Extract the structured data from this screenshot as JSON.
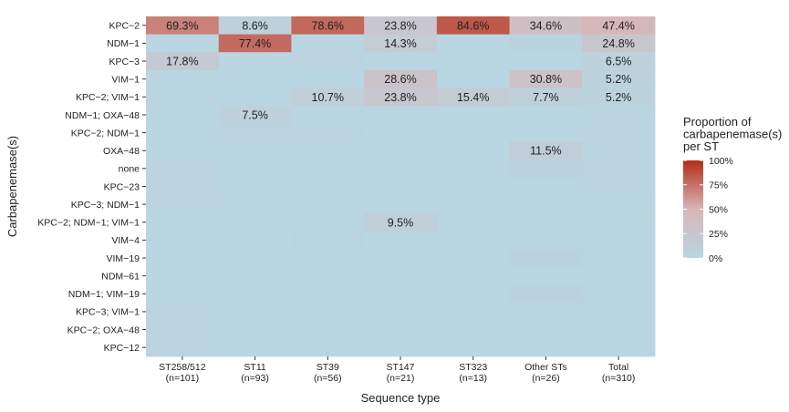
{
  "chart_data": {
    "type": "heatmap",
    "xlabel": "Sequence type",
    "ylabel": "Carbapenemase(s)",
    "x_categories": [
      {
        "name": "ST258/512",
        "n": "(n=101)"
      },
      {
        "name": "ST11",
        "n": "(n=93)"
      },
      {
        "name": "ST39",
        "n": "(n=56)"
      },
      {
        "name": "ST147",
        "n": "(n=21)"
      },
      {
        "name": "ST323",
        "n": "(n=13)"
      },
      {
        "name": "Other STs",
        "n": "(n=26)"
      },
      {
        "name": "Total",
        "n": "(n=310)"
      }
    ],
    "y_categories": [
      "KPC−2",
      "NDM−1",
      "KPC−3",
      "VIM−1",
      "KPC−2; VIM−1",
      "NDM−1; OXA−48",
      "KPC−2; NDM−1",
      "OXA−48",
      "none",
      "KPC−23",
      "KPC−3; NDM−1",
      "KPC−2; NDM−1; VIM−1",
      "VIM−4",
      "VIM−19",
      "NDM−61",
      "NDM−1; VIM−19",
      "KPC−3; VIM−1",
      "KPC−2; OXA−48",
      "KPC−12"
    ],
    "values": [
      [
        69.3,
        8.6,
        78.6,
        23.8,
        84.6,
        34.6,
        47.4
      ],
      [
        0,
        77.4,
        0,
        14.3,
        0,
        3.8,
        24.8
      ],
      [
        17.8,
        0,
        3.6,
        0,
        0,
        0,
        6.5
      ],
      [
        0,
        0,
        0,
        28.6,
        0,
        30.8,
        5.2
      ],
      [
        1,
        0,
        10.7,
        23.8,
        15.4,
        7.7,
        5.2
      ],
      [
        0,
        7.5,
        0,
        0,
        0,
        0,
        2.3
      ],
      [
        0,
        3.2,
        1.8,
        0,
        0,
        0,
        1.3
      ],
      [
        0,
        0,
        0,
        0,
        0,
        11.5,
        1.0
      ],
      [
        3,
        0,
        0,
        0,
        0,
        3.8,
        1.3
      ],
      [
        3,
        0,
        0,
        0,
        0,
        0,
        1.0
      ],
      [
        2,
        0,
        0,
        0,
        0,
        0,
        0.6
      ],
      [
        0,
        0,
        0,
        9.5,
        0,
        0,
        0.6
      ],
      [
        0,
        0,
        1.8,
        0,
        0,
        0,
        0.3
      ],
      [
        0,
        0,
        0,
        0,
        0,
        3.8,
        0.3
      ],
      [
        0,
        1.1,
        0,
        0,
        0,
        0,
        0.3
      ],
      [
        0,
        0,
        0,
        0,
        0,
        3.8,
        0.3
      ],
      [
        1,
        0,
        0,
        0,
        0,
        0,
        0.3
      ],
      [
        1,
        0,
        0,
        0,
        0,
        0,
        0.3
      ],
      [
        1,
        0,
        0,
        0,
        0,
        0,
        0.3
      ]
    ],
    "labels": [
      [
        "69.3%",
        "8.6%",
        "78.6%",
        "23.8%",
        "84.6%",
        "34.6%",
        "47.4%"
      ],
      [
        "",
        "77.4%",
        "",
        "14.3%",
        "",
        "",
        "24.8%"
      ],
      [
        "17.8%",
        "",
        "",
        "",
        "",
        "",
        "6.5%"
      ],
      [
        "",
        "",
        "",
        "28.6%",
        "",
        "30.8%",
        "5.2%"
      ],
      [
        "",
        "",
        "10.7%",
        "23.8%",
        "15.4%",
        "7.7%",
        "5.2%"
      ],
      [
        "",
        "7.5%",
        "",
        "",
        "",
        "",
        ""
      ],
      [
        "",
        "",
        "",
        "",
        "",
        "",
        ""
      ],
      [
        "",
        "",
        "",
        "",
        "",
        "11.5%",
        ""
      ],
      [
        "",
        "",
        "",
        "",
        "",
        "",
        ""
      ],
      [
        "",
        "",
        "",
        "",
        "",
        "",
        ""
      ],
      [
        "",
        "",
        "",
        "",
        "",
        "",
        ""
      ],
      [
        "",
        "",
        "",
        "9.5%",
        "",
        "",
        ""
      ],
      [
        "",
        "",
        "",
        "",
        "",
        "",
        ""
      ],
      [
        "",
        "",
        "",
        "",
        "",
        "",
        ""
      ],
      [
        "",
        "",
        "",
        "",
        "",
        "",
        ""
      ],
      [
        "",
        "",
        "",
        "",
        "",
        "",
        ""
      ],
      [
        "",
        "",
        "",
        "",
        "",
        "",
        ""
      ],
      [
        "",
        "",
        "",
        "",
        "",
        "",
        ""
      ],
      [
        "",
        "",
        "",
        "",
        "",
        "",
        ""
      ]
    ],
    "value_range": [
      0,
      100
    ],
    "legend": {
      "title_lines": [
        "Proportion of",
        "carbapenemase(s)",
        "per ST"
      ],
      "ticks": [
        "100%",
        "75%",
        "50%",
        "25%",
        "0%"
      ],
      "position": "right"
    },
    "colors": {
      "low": "#b9d6e2",
      "mid": "#d8b5b7",
      "high": "#b22e18"
    }
  }
}
